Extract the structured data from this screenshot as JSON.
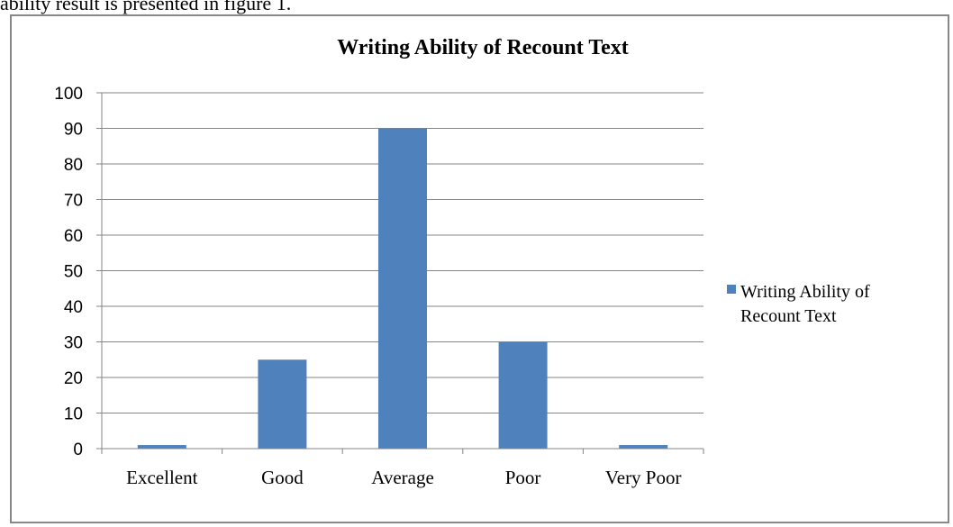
{
  "page": {
    "caption": "ability result is presented in figure 1."
  },
  "chart_data": {
    "type": "bar",
    "title": "Writing Ability of Recount Text",
    "xlabel": "",
    "ylabel": "",
    "categories": [
      "Excellent",
      "Good",
      "Average",
      "Poor",
      "Very Poor"
    ],
    "series": [
      {
        "name": "Writing Ability of Recount Text",
        "values": [
          1,
          25,
          90,
          30,
          1
        ],
        "color": "#4f81bd"
      }
    ],
    "ylim": [
      0,
      100
    ],
    "yticks": [
      0,
      10,
      20,
      30,
      40,
      50,
      60,
      70,
      80,
      90,
      100
    ],
    "grid": true,
    "legend": {
      "position": "right",
      "lines": [
        "Writing Ability of",
        "Recount Text"
      ]
    }
  }
}
